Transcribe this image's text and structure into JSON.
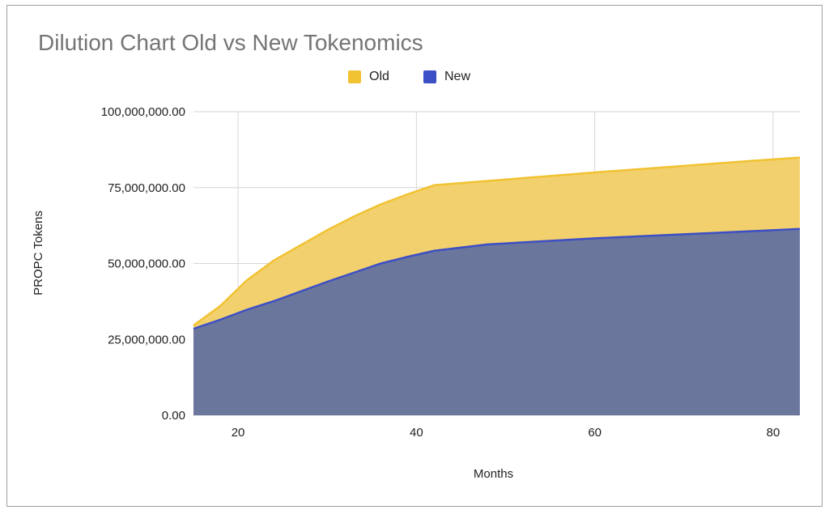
{
  "chart_data": {
    "type": "area",
    "title": "Dilution Chart Old vs New Tokenomics",
    "xlabel": "Months",
    "ylabel": "PROPC Tokens",
    "xlim": [
      15,
      83
    ],
    "ylim": [
      0,
      100000000
    ],
    "xticks": [
      20,
      40,
      60,
      80
    ],
    "yticks": [
      0,
      25000000,
      50000000,
      75000000,
      100000000
    ],
    "ytick_labels": [
      "0.00",
      "25,000,000.00",
      "50,000,000.00",
      "75,000,000.00",
      "100,000,000.00"
    ],
    "grid": true,
    "legend_position": "top-center",
    "x": [
      15,
      18,
      21,
      24,
      27,
      30,
      33,
      36,
      39,
      42,
      48,
      54,
      60,
      66,
      72,
      78,
      83
    ],
    "series": [
      {
        "name": "Old",
        "color": "#f1c232",
        "values": [
          29600000,
          36000000,
          44500000,
          51000000,
          56000000,
          61000000,
          65500000,
          69500000,
          72800000,
          75800000,
          77200000,
          78600000,
          80000000,
          81300000,
          82600000,
          83900000,
          84900000
        ]
      },
      {
        "name": "New",
        "color": "#3c4fc4",
        "values": [
          28500000,
          31500000,
          34800000,
          37600000,
          40800000,
          44000000,
          47000000,
          50000000,
          52200000,
          54200000,
          56300000,
          57300000,
          58300000,
          59100000,
          59900000,
          60700000,
          61400000
        ]
      }
    ]
  }
}
